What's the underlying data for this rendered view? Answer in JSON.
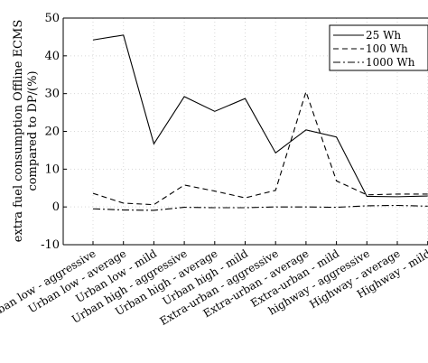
{
  "chart_data": {
    "type": "line",
    "title": "",
    "xlabel": "",
    "ylabel_line1": "extra fuel consumption Offline ECMS",
    "ylabel_line2": "compared to DP/(%)",
    "ylim": [
      -10,
      50
    ],
    "yticks": [
      -10,
      0,
      10,
      20,
      30,
      40,
      50
    ],
    "grid": true,
    "legend_position": "top-right",
    "categories": [
      "Urban low - aggressive",
      "Urban low - average",
      "Urban low - mild",
      "Urban high - aggressive",
      "Urban high - average",
      "Urban high - mild",
      "Extra-urban - aggressive",
      "Extra-urban - average",
      "Extra-urban - mild",
      "highway - aggressive",
      "Highway - average",
      "Highway - mild"
    ],
    "series": [
      {
        "name": "25 Wh",
        "dash": "solid",
        "values": [
          44.2,
          45.5,
          16.7,
          29.2,
          25.3,
          28.7,
          14.3,
          20.4,
          18.5,
          2.8,
          2.7,
          2.9
        ]
      },
      {
        "name": "100 Wh",
        "dash": "dashed",
        "values": [
          3.6,
          1.0,
          0.6,
          5.8,
          4.2,
          2.4,
          4.4,
          30.5,
          6.9,
          3.2,
          3.4,
          3.4
        ]
      },
      {
        "name": "1000 Wh",
        "dash": "dashdot",
        "values": [
          -0.5,
          -0.8,
          -0.9,
          -0.1,
          -0.2,
          -0.2,
          0.0,
          0.0,
          -0.1,
          0.3,
          0.4,
          0.2
        ]
      }
    ],
    "line_color": "#000000"
  }
}
